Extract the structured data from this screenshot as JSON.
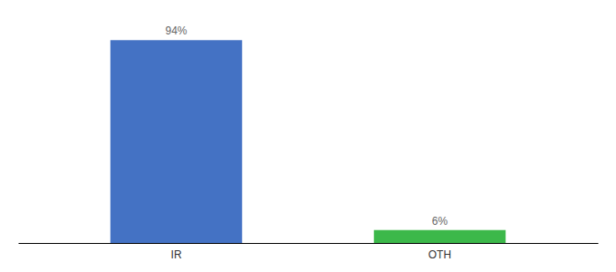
{
  "chart_data": {
    "type": "bar",
    "categories": [
      "IR",
      "OTH"
    ],
    "values": [
      94,
      6
    ],
    "value_labels": [
      "94%",
      "6%"
    ],
    "colors": [
      "#4472c4",
      "#3cb84a"
    ],
    "ylim": [
      0,
      100
    ],
    "data_labels": true,
    "tick_labels": "x",
    "grid": false
  }
}
